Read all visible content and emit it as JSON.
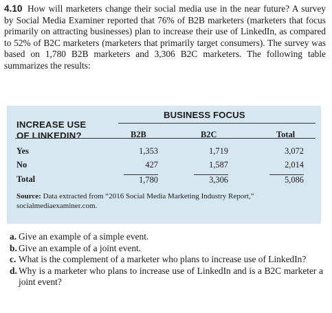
{
  "problem": {
    "number": "4.10",
    "text": "How will marketers change their social media use in the near future? A survey by Social Media Examiner reported that 76% of B2B marketers (marketers that focus primarily on attracting businesses) plan to increase their use of LinkedIn, as compared to 52% of B2C marketers (marketers that primarily target consumers). The survey was based on 1,780 B2B marketers and 3,306 B2C marketers. The following table summarizes the results:"
  },
  "table": {
    "column_group_header": "BUSINESS FOCUS",
    "row_header_line1": "INCREASE USE",
    "row_header_line2": "OF LINKEDIN?",
    "columns": [
      "B2B",
      "B2C",
      "Total"
    ],
    "rows": [
      {
        "label": "Yes",
        "values": [
          "1,353",
          "1,719",
          "3,072"
        ]
      },
      {
        "label": "No",
        "values": [
          "427",
          "1,587",
          "2,014"
        ]
      },
      {
        "label": "Total",
        "values": [
          "1,780",
          "3,306",
          "5,086"
        ]
      }
    ],
    "source_prefix": "Source:",
    "source_text": " Data extracted from “2016 Social Media Marketing Industry Report,” socialmediaexaminer.com."
  },
  "questions": [
    {
      "letter": "a.",
      "text": "Give an example of a simple event."
    },
    {
      "letter": "b.",
      "text": "Give an example of a joint event."
    },
    {
      "letter": "c.",
      "text": "What is the complement of a marketer who plans to increase use of LinkedIn?"
    },
    {
      "letter": "d.",
      "text": "Why is a marketer who plans to increase use of LinkedIn and is a B2C marketer a joint event?"
    }
  ]
}
